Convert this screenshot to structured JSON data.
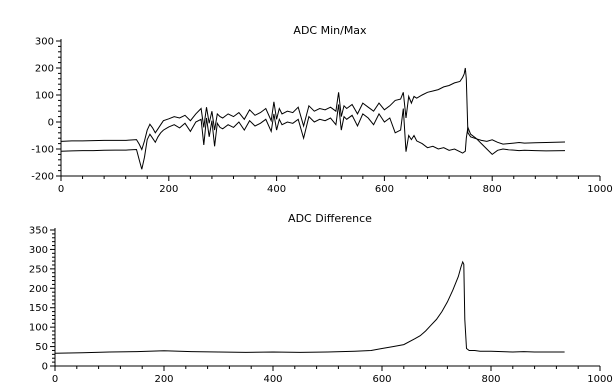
{
  "chart_data": [
    {
      "type": "line",
      "title": "ADC Min/Max",
      "xlabel": "",
      "ylabel": "",
      "xlim": [
        0,
        1000
      ],
      "ylim": [
        -200,
        300
      ],
      "xticks": [
        0,
        200,
        400,
        600,
        800,
        1000
      ],
      "yticks": [
        -200,
        -100,
        0,
        100,
        200,
        300
      ],
      "grid": false,
      "legend": "none",
      "series": [
        {
          "x": [
            0,
            20,
            40,
            60,
            80,
            100,
            120,
            140,
            145,
            150,
            155,
            160,
            165,
            170,
            175,
            180,
            185,
            190,
            200,
            210,
            220,
            230,
            240,
            250,
            260,
            265,
            270,
            275,
            280,
            285,
            290,
            295,
            300,
            310,
            320,
            330,
            340,
            350,
            360,
            370,
            380,
            390,
            395,
            400,
            405,
            410,
            420,
            430,
            440,
            450,
            460,
            470,
            480,
            490,
            500,
            510,
            515,
            520,
            525,
            530,
            540,
            550,
            560,
            570,
            580,
            590,
            600,
            610,
            620,
            630,
            635,
            640,
            645,
            650,
            655,
            660,
            670,
            680,
            690,
            700,
            710,
            720,
            730,
            740,
            745,
            748,
            750,
            752,
            755,
            760,
            770,
            780,
            790,
            800,
            810,
            820,
            830,
            840,
            850,
            860,
            880,
            900,
            935
          ],
          "y": [
            -72,
            -70,
            -70,
            -69,
            -68,
            -68,
            -68,
            -65,
            -82,
            -102,
            -70,
            -30,
            -8,
            -22,
            -40,
            -25,
            -10,
            5,
            12,
            20,
            15,
            25,
            5,
            30,
            50,
            -20,
            55,
            -5,
            40,
            -30,
            30,
            20,
            15,
            30,
            20,
            35,
            10,
            45,
            25,
            35,
            50,
            5,
            75,
            10,
            50,
            30,
            40,
            35,
            55,
            -15,
            60,
            40,
            50,
            45,
            55,
            40,
            110,
            20,
            60,
            50,
            65,
            30,
            70,
            55,
            40,
            70,
            45,
            60,
            80,
            85,
            110,
            15,
            95,
            70,
            95,
            88,
            100,
            110,
            115,
            120,
            130,
            135,
            145,
            150,
            165,
            178,
            200,
            160,
            -40,
            -55,
            -62,
            -68,
            -72,
            -66,
            -75,
            -82,
            -80,
            -78,
            -76,
            -78,
            -77,
            -76,
            -74
          ]
        },
        {
          "x": [
            0,
            20,
            40,
            60,
            80,
            100,
            120,
            140,
            145,
            150,
            155,
            160,
            165,
            170,
            175,
            180,
            185,
            190,
            200,
            210,
            220,
            230,
            240,
            250,
            260,
            265,
            270,
            275,
            280,
            285,
            290,
            295,
            300,
            310,
            320,
            330,
            340,
            350,
            360,
            370,
            380,
            390,
            395,
            400,
            405,
            410,
            420,
            430,
            440,
            450,
            460,
            470,
            480,
            490,
            500,
            510,
            515,
            520,
            525,
            530,
            540,
            550,
            560,
            570,
            580,
            590,
            600,
            610,
            620,
            630,
            635,
            640,
            645,
            650,
            655,
            660,
            670,
            680,
            690,
            700,
            710,
            720,
            730,
            740,
            745,
            750,
            752,
            755,
            760,
            770,
            780,
            790,
            800,
            810,
            820,
            830,
            840,
            850,
            860,
            880,
            900,
            935
          ],
          "y": [
            -108,
            -107,
            -106,
            -106,
            -105,
            -104,
            -104,
            -102,
            -140,
            -175,
            -130,
            -65,
            -45,
            -60,
            -75,
            -55,
            -40,
            -30,
            -18,
            -10,
            -22,
            -5,
            -35,
            0,
            10,
            -85,
            15,
            -55,
            5,
            -90,
            -5,
            -20,
            -25,
            -10,
            -20,
            0,
            -30,
            5,
            -15,
            -5,
            10,
            -35,
            30,
            -30,
            10,
            -10,
            0,
            -5,
            10,
            -60,
            20,
            0,
            10,
            5,
            15,
            -10,
            65,
            -30,
            20,
            10,
            25,
            -15,
            30,
            15,
            -10,
            30,
            0,
            15,
            -40,
            -30,
            50,
            -110,
            -50,
            -65,
            -50,
            -70,
            -80,
            -95,
            -90,
            -100,
            -95,
            -105,
            -100,
            -110,
            -115,
            -108,
            -60,
            -20,
            -45,
            -60,
            -80,
            -100,
            -120,
            -105,
            -100,
            -103,
            -104,
            -106,
            -105,
            -106,
            -107,
            -106
          ]
        }
      ]
    },
    {
      "type": "line",
      "title": "ADC Difference",
      "xlabel": "",
      "ylabel": "",
      "xlim": [
        0,
        1000
      ],
      "ylim": [
        0,
        350
      ],
      "xticks": [
        0,
        200,
        400,
        600,
        800,
        1000
      ],
      "yticks": [
        0,
        50,
        100,
        150,
        200,
        250,
        300,
        350
      ],
      "grid": false,
      "legend": "none",
      "series": [
        {
          "x": [
            0,
            50,
            100,
            150,
            200,
            250,
            300,
            350,
            400,
            450,
            500,
            550,
            580,
            600,
            620,
            640,
            660,
            670,
            680,
            690,
            700,
            710,
            720,
            730,
            740,
            745,
            748,
            750,
            752,
            755,
            760,
            770,
            780,
            800,
            820,
            840,
            860,
            880,
            900,
            935
          ],
          "y": [
            33,
            34,
            36,
            37,
            39,
            37,
            36,
            35,
            36,
            35,
            36,
            38,
            40,
            45,
            50,
            55,
            70,
            78,
            90,
            105,
            120,
            140,
            165,
            195,
            230,
            255,
            268,
            262,
            120,
            45,
            40,
            40,
            38,
            38,
            37,
            36,
            37,
            36,
            36,
            36
          ]
        }
      ]
    }
  ]
}
